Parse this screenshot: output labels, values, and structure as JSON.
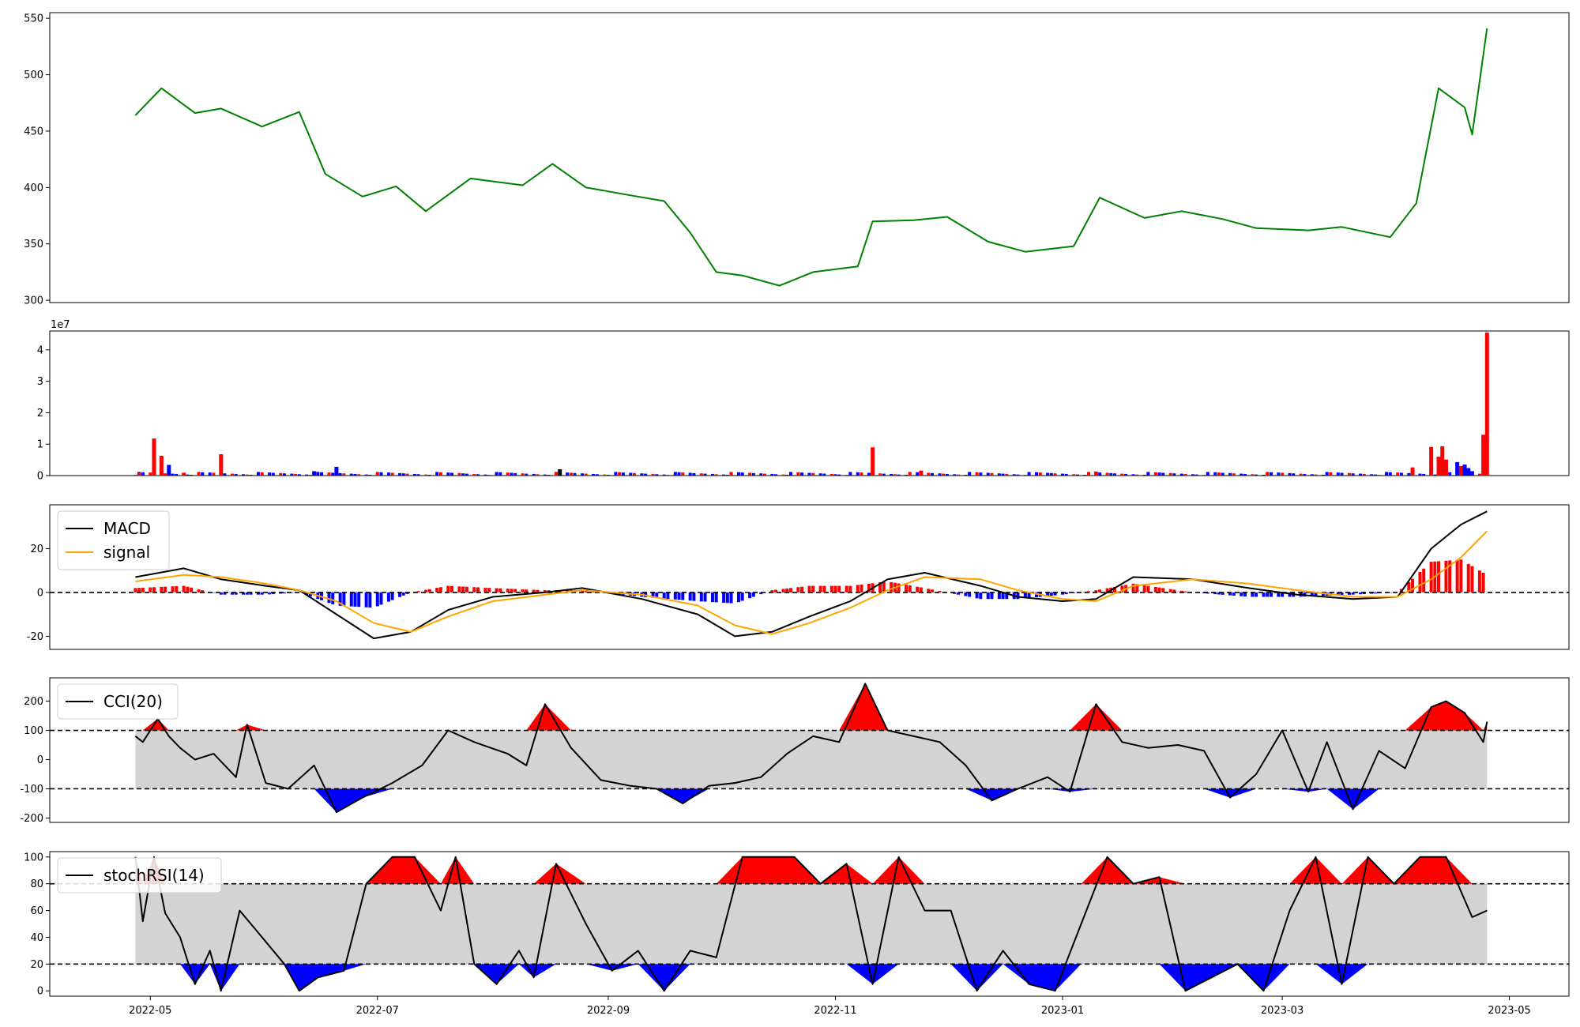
{
  "x_ticks": [
    "2022-05",
    "2022-07",
    "2022-09",
    "2022-11",
    "2023-01",
    "2023-03",
    "2023-05"
  ],
  "chart_data": [
    {
      "type": "line",
      "panel": "price",
      "ylim": [
        298,
        555
      ],
      "yticks": [
        300,
        350,
        400,
        450,
        500,
        550
      ],
      "color": "#008000",
      "x": [
        "2022-04-27",
        "2022-05-04",
        "2022-05-13",
        "2022-05-20",
        "2022-05-31",
        "2022-06-10",
        "2022-06-17",
        "2022-06-27",
        "2022-07-06",
        "2022-07-14",
        "2022-07-26",
        "2022-08-02",
        "2022-08-09",
        "2022-08-17",
        "2022-08-26",
        "2022-09-07",
        "2022-09-16",
        "2022-09-23",
        "2022-09-30",
        "2022-10-07",
        "2022-10-17",
        "2022-10-26",
        "2022-11-07",
        "2022-11-11",
        "2022-11-22",
        "2022-12-01",
        "2022-12-12",
        "2022-12-22",
        "2023-01-04",
        "2023-01-11",
        "2023-01-23",
        "2023-02-02",
        "2023-02-13",
        "2023-02-22",
        "2023-03-08",
        "2023-03-17",
        "2023-03-30",
        "2023-04-06",
        "2023-04-12",
        "2023-04-19",
        "2023-04-21",
        "2023-04-25"
      ],
      "values": [
        464,
        488,
        466,
        470,
        454,
        467,
        412,
        392,
        401,
        379,
        408,
        405,
        402,
        421,
        400,
        393,
        388,
        360,
        325,
        322,
        313,
        325,
        330,
        370,
        371,
        374,
        352,
        343,
        348,
        391,
        373,
        379,
        372,
        364,
        362,
        365,
        356,
        386,
        488,
        471,
        447,
        541
      ]
    },
    {
      "type": "bar",
      "panel": "volume",
      "ylim": [
        0,
        46000000
      ],
      "yticks": [
        0,
        1,
        2,
        3,
        4
      ],
      "scale_label": "1e7",
      "up_color": "#ff0000",
      "down_color": "#0000ff",
      "x": [
        "2022-04-28",
        "2022-05-02",
        "2022-05-04",
        "2022-05-06",
        "2022-05-10",
        "2022-05-20",
        "2022-06-14",
        "2022-06-20",
        "2022-08-19",
        "2022-11-11",
        "2022-11-24",
        "2023-01-10",
        "2023-04-05",
        "2023-04-10",
        "2023-04-12",
        "2023-04-13",
        "2023-04-14",
        "2023-04-17",
        "2023-04-18",
        "2023-04-19",
        "2023-04-20",
        "2023-04-21",
        "2023-04-24",
        "2023-04-25"
      ],
      "values": [
        800000,
        11800000,
        6300000,
        3400000,
        900000,
        6800000,
        1400000,
        2800000,
        2000000,
        9000000,
        1600000,
        1300000,
        2600000,
        9100000,
        6000000,
        9300000,
        5100000,
        4300000,
        3000000,
        3500000,
        2400000,
        1400000,
        13000000,
        45500000
      ],
      "colors": [
        "red",
        "red",
        "red",
        "blue",
        "red",
        "red",
        "blue",
        "blue",
        "black",
        "red",
        "red",
        "red",
        "red",
        "red",
        "red",
        "red",
        "red",
        "blue",
        "red",
        "blue",
        "blue",
        "blue",
        "red",
        "red"
      ]
    },
    {
      "type": "line",
      "panel": "macd",
      "ylim": [
        -26,
        40
      ],
      "yticks": [
        -20,
        0,
        20
      ],
      "x": [
        "2022-04-27",
        "2022-05-10",
        "2022-05-20",
        "2022-06-01",
        "2022-06-10",
        "2022-06-20",
        "2022-06-30",
        "2022-07-10",
        "2022-07-20",
        "2022-08-01",
        "2022-08-15",
        "2022-08-25",
        "2022-09-10",
        "2022-09-25",
        "2022-10-05",
        "2022-10-15",
        "2022-10-25",
        "2022-11-05",
        "2022-11-15",
        "2022-11-25",
        "2022-12-10",
        "2022-12-20",
        "2023-01-01",
        "2023-01-10",
        "2023-01-20",
        "2023-02-05",
        "2023-02-20",
        "2023-03-05",
        "2023-03-20",
        "2023-04-01",
        "2023-04-10",
        "2023-04-18",
        "2023-04-25"
      ],
      "series": [
        {
          "name": "MACD",
          "color": "#000000",
          "values": [
            7,
            11,
            6,
            3,
            1,
            -10,
            -21,
            -18,
            -8,
            -2,
            0,
            2,
            -3,
            -10,
            -20,
            -18,
            -11,
            -4,
            6,
            9,
            3,
            -2,
            -4,
            -3,
            7,
            6,
            2,
            -1,
            -3,
            -2,
            20,
            31,
            37
          ]
        },
        {
          "name": "signal",
          "color": "#ffa500",
          "values": [
            5,
            8,
            7,
            4,
            1,
            -4,
            -14,
            -18,
            -11,
            -4,
            -1,
            1,
            -1,
            -6,
            -15,
            -19,
            -14,
            -7,
            1,
            7,
            6,
            1,
            -3,
            -4,
            3,
            6,
            4,
            1,
            -2,
            -2,
            6,
            16,
            28
          ]
        }
      ],
      "hist_x": [
        "2022-04-27",
        "2022-05-10",
        "2022-05-20",
        "2022-06-01",
        "2022-06-10",
        "2022-06-20",
        "2022-06-30",
        "2022-07-10",
        "2022-07-20",
        "2022-08-01",
        "2022-08-15",
        "2022-08-25",
        "2022-09-10",
        "2022-09-25",
        "2022-10-05",
        "2022-10-15",
        "2022-10-25",
        "2022-11-05",
        "2022-11-15",
        "2022-11-25",
        "2022-12-10",
        "2022-12-20",
        "2023-01-01",
        "2023-01-10",
        "2023-01-20",
        "2023-02-05",
        "2023-02-20",
        "2023-03-05",
        "2023-03-20",
        "2023-04-01",
        "2023-04-10",
        "2023-04-18",
        "2023-04-25"
      ],
      "hist": [
        2,
        3,
        -1,
        -1,
        0,
        -6,
        -7,
        0,
        3,
        2,
        1,
        1,
        -2,
        -4,
        -5,
        1,
        3,
        3,
        5,
        2,
        -3,
        -3,
        -1,
        1,
        4,
        0,
        -2,
        -2,
        -1,
        0,
        14,
        15,
        8
      ]
    },
    {
      "type": "line",
      "panel": "cci",
      "ylim": [
        -215,
        280
      ],
      "yticks": [
        -200,
        -100,
        0,
        100,
        200
      ],
      "series": [
        {
          "name": "CCI(20)",
          "color": "#000000"
        }
      ],
      "bands": [
        -100,
        100
      ],
      "x": [
        "2022-04-27",
        "2022-04-29",
        "2022-05-03",
        "2022-05-06",
        "2022-05-09",
        "2022-05-13",
        "2022-05-18",
        "2022-05-24",
        "2022-05-27",
        "2022-06-01",
        "2022-06-07",
        "2022-06-14",
        "2022-06-20",
        "2022-06-27",
        "2022-07-05",
        "2022-07-13",
        "2022-07-20",
        "2022-07-27",
        "2022-08-05",
        "2022-08-10",
        "2022-08-15",
        "2022-08-22",
        "2022-08-30",
        "2022-09-07",
        "2022-09-14",
        "2022-09-21",
        "2022-09-28",
        "2022-10-05",
        "2022-10-12",
        "2022-10-19",
        "2022-10-26",
        "2022-11-02",
        "2022-11-09",
        "2022-11-15",
        "2022-11-22",
        "2022-11-29",
        "2022-12-06",
        "2022-12-13",
        "2022-12-20",
        "2022-12-28",
        "2023-01-03",
        "2023-01-10",
        "2023-01-17",
        "2023-01-24",
        "2023-02-01",
        "2023-02-08",
        "2023-02-15",
        "2023-02-22",
        "2023-03-01",
        "2023-03-08",
        "2023-03-13",
        "2023-03-20",
        "2023-03-27",
        "2023-04-03",
        "2023-04-10",
        "2023-04-14",
        "2023-04-19",
        "2023-04-24",
        "2023-04-25"
      ],
      "values": [
        80,
        60,
        140,
        80,
        40,
        0,
        20,
        -60,
        120,
        -80,
        -100,
        -20,
        -180,
        -130,
        -80,
        -20,
        100,
        60,
        20,
        -20,
        190,
        40,
        -70,
        -90,
        -100,
        -150,
        -90,
        -80,
        -60,
        20,
        80,
        60,
        260,
        100,
        80,
        60,
        -20,
        -140,
        -100,
        -60,
        -110,
        190,
        60,
        40,
        50,
        30,
        -130,
        -50,
        100,
        -110,
        60,
        -170,
        30,
        -30,
        180,
        200,
        160,
        60,
        130
      ]
    },
    {
      "type": "line",
      "panel": "stochrsi",
      "ylim": [
        -4,
        104
      ],
      "yticks": [
        0,
        20,
        40,
        60,
        80,
        100
      ],
      "series": [
        {
          "name": "stochRSI(14)",
          "color": "#000000"
        }
      ],
      "bands": [
        20,
        80
      ],
      "x": [
        "2022-04-27",
        "2022-04-29",
        "2022-05-02",
        "2022-05-05",
        "2022-05-09",
        "2022-05-13",
        "2022-05-17",
        "2022-05-20",
        "2022-05-25",
        "2022-05-31",
        "2022-06-06",
        "2022-06-10",
        "2022-06-15",
        "2022-06-22",
        "2022-06-28",
        "2022-07-05",
        "2022-07-11",
        "2022-07-18",
        "2022-07-22",
        "2022-07-27",
        "2022-08-02",
        "2022-08-08",
        "2022-08-12",
        "2022-08-18",
        "2022-08-26",
        "2022-09-02",
        "2022-09-09",
        "2022-09-16",
        "2022-09-23",
        "2022-09-30",
        "2022-10-07",
        "2022-10-14",
        "2022-10-21",
        "2022-10-28",
        "2022-11-04",
        "2022-11-11",
        "2022-11-18",
        "2022-11-25",
        "2022-12-02",
        "2022-12-09",
        "2022-12-16",
        "2022-12-23",
        "2022-12-30",
        "2023-01-06",
        "2023-01-13",
        "2023-01-20",
        "2023-01-27",
        "2023-02-03",
        "2023-02-10",
        "2023-02-17",
        "2023-02-24",
        "2023-03-03",
        "2023-03-10",
        "2023-03-17",
        "2023-03-24",
        "2023-03-31",
        "2023-04-07",
        "2023-04-14",
        "2023-04-21",
        "2023-04-25"
      ],
      "values": [
        100,
        52,
        100,
        58,
        40,
        5,
        30,
        0,
        60,
        40,
        20,
        0,
        10,
        15,
        80,
        100,
        100,
        60,
        100,
        20,
        5,
        30,
        10,
        95,
        50,
        15,
        30,
        0,
        30,
        25,
        100,
        100,
        100,
        80,
        95,
        5,
        100,
        60,
        60,
        0,
        30,
        5,
        0,
        50,
        100,
        80,
        85,
        0,
        10,
        20,
        0,
        60,
        100,
        5,
        100,
        80,
        100,
        100,
        55,
        60
      ]
    }
  ]
}
